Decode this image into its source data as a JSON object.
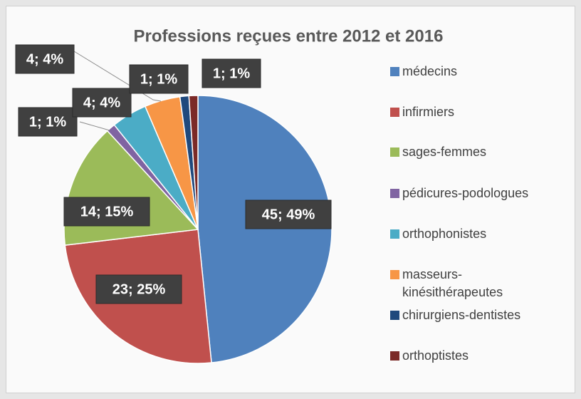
{
  "chart_data": {
    "type": "pie",
    "title": "Professions reçues entre 2012 et 2016",
    "categories": [
      "médecins",
      "infirmiers",
      "sages-femmes",
      "pédicures-podologues",
      "orthophonistes",
      "masseurs-kinésithérapeutes",
      "chirurgiens-dentistes",
      "orthoptistes"
    ],
    "values": [
      45,
      23,
      14,
      1,
      4,
      4,
      1,
      1
    ],
    "value_labels": [
      "45; 49%",
      "23; 25%",
      "14; 15%",
      "1; 1%",
      "4; 4%",
      "4; 4%",
      "1; 1%",
      "1; 1%"
    ],
    "colors": [
      "#4f81bd",
      "#c0504d",
      "#9bbb59",
      "#8064a2",
      "#4bacc6",
      "#f79646",
      "#1f497d",
      "#7b2a27"
    ],
    "legend": "right"
  }
}
